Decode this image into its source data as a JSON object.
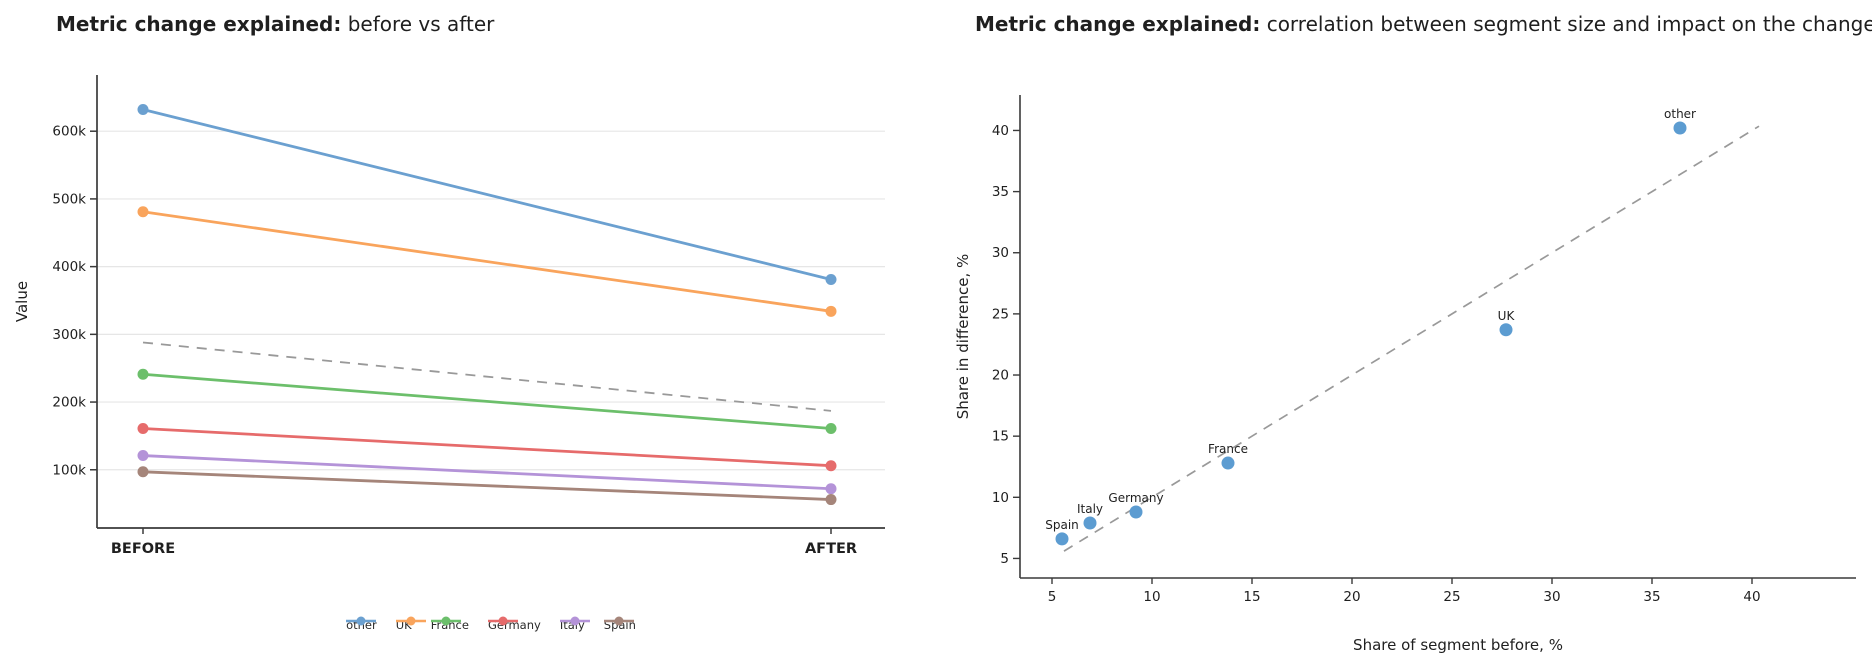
{
  "page": {
    "background": "#ffffff"
  },
  "colors": {
    "grid": "#e6e6e6",
    "spine": "#3a3a3a",
    "text": "#1f1f1f",
    "dashed": "#999999",
    "scatter_point": "#5c9cd1"
  },
  "chart_data": [
    {
      "type": "line",
      "id": "before-after-slope",
      "title_bold": "Metric change explained:",
      "title_rest": " before vs after",
      "ylabel": "Value",
      "categories": [
        "BEFORE",
        "AFTER"
      ],
      "yticks": [
        {
          "v": 100000,
          "label": "100k"
        },
        {
          "v": 200000,
          "label": "200k"
        },
        {
          "v": 300000,
          "label": "300k"
        },
        {
          "v": 400000,
          "label": "400k"
        },
        {
          "v": 500000,
          "label": "500k"
        },
        {
          "v": 600000,
          "label": "600k"
        }
      ],
      "ylim": [
        14000,
        683000
      ],
      "grid": true,
      "legend_position": "bottom-center",
      "series": [
        {
          "name": "other",
          "color": "#6ba0d0",
          "values": [
            632000,
            381000
          ]
        },
        {
          "name": "UK",
          "color": "#f9a45c",
          "values": [
            481000,
            334000
          ]
        },
        {
          "name": "France",
          "color": "#6cbf6b",
          "values": [
            241000,
            161000
          ]
        },
        {
          "name": "Germany",
          "color": "#e66b6b",
          "values": [
            161000,
            106000
          ]
        },
        {
          "name": "Italy",
          "color": "#b493d8",
          "values": [
            121000,
            72000
          ]
        },
        {
          "name": "Spain",
          "color": "#a5857a",
          "values": [
            97000,
            56000
          ]
        }
      ],
      "trend": {
        "color": "#999999",
        "dashed": true,
        "values": [
          288000,
          187000
        ]
      }
    },
    {
      "type": "scatter",
      "id": "size-vs-impact",
      "title_bold": "Metric change explained:",
      "title_rest": " correlation between segment size and impact on the change",
      "xlabel": "Share of segment before, %",
      "ylabel": "Share in difference, %",
      "xticks": [
        5,
        10,
        15,
        20,
        25,
        30,
        35,
        40
      ],
      "yticks": [
        5,
        10,
        15,
        20,
        25,
        30,
        35,
        40
      ],
      "xlim": [
        3.4,
        45.2
      ],
      "ylim": [
        3.4,
        42.9
      ],
      "grid": false,
      "point_color": "#5c9cd1",
      "points": [
        {
          "label": "Spain",
          "x": 5.5,
          "y": 6.6
        },
        {
          "label": "Italy",
          "x": 6.9,
          "y": 7.9
        },
        {
          "label": "Germany",
          "x": 9.2,
          "y": 8.8
        },
        {
          "label": "France",
          "x": 13.8,
          "y": 12.8
        },
        {
          "label": "UK",
          "x": 27.7,
          "y": 23.7
        },
        {
          "label": "other",
          "x": 36.4,
          "y": 40.2
        }
      ],
      "trendline": {
        "x1": 5.6,
        "y1": 5.6,
        "x2": 40.35,
        "y2": 40.35,
        "color": "#999999",
        "dashed": true
      }
    }
  ]
}
